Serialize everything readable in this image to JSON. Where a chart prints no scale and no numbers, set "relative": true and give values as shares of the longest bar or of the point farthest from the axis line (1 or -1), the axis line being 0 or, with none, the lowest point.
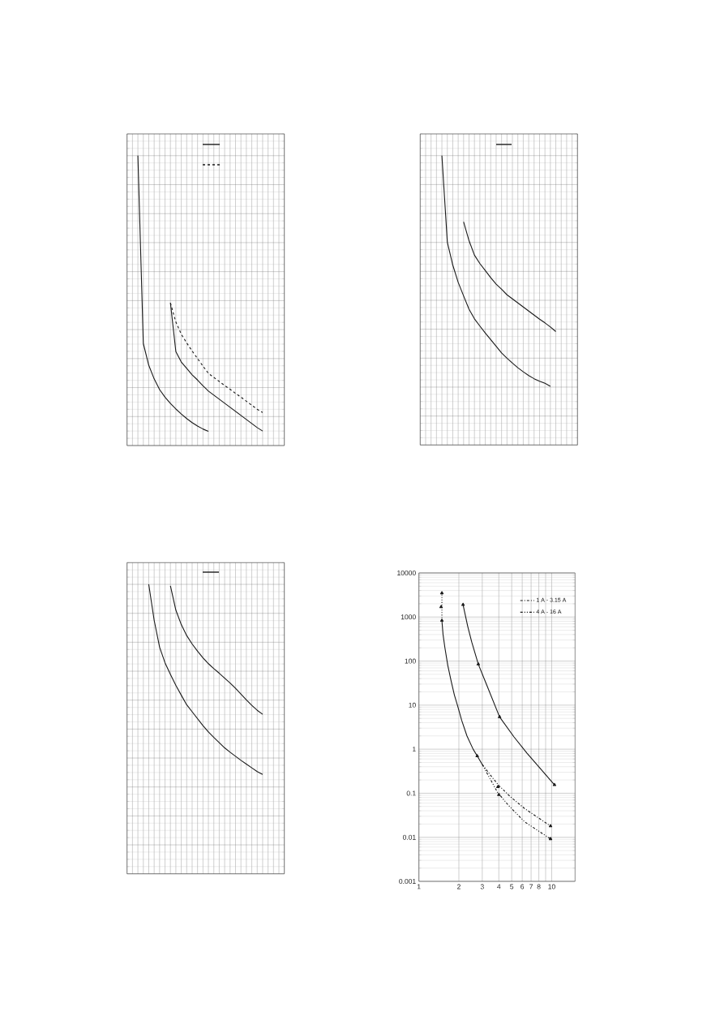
{
  "chart_data": [
    {
      "type": "line",
      "relative": true,
      "grid": true,
      "categories": [
        null,
        null,
        null,
        null,
        null,
        null,
        null,
        null,
        null,
        null,
        null,
        null,
        null,
        null,
        null,
        null,
        null,
        null,
        null,
        null,
        null,
        null,
        null,
        null,
        null,
        null,
        null,
        null,
        null,
        null
      ],
      "series": [
        {
          "color": "#1a1a1a",
          "line_style": "solid",
          "values": [
            null,
            null,
            1,
            0.352,
            0.277,
            0.23,
            0.193,
            0.167,
            0.145,
            0.126,
            0.109,
            0.093,
            0.079,
            0.067,
            0.057,
            0.049,
            null,
            null,
            null,
            null,
            null,
            null,
            null,
            null,
            null,
            null,
            null,
            null,
            null,
            null
          ]
        },
        {
          "color": "#1a1a1a",
          "line_style": "solid",
          "values": [
            null,
            null,
            null,
            null,
            null,
            null,
            null,
            null,
            0.492,
            0.324,
            0.288,
            0.266,
            0.244,
            0.226,
            0.206,
            0.188,
            0.174,
            0.16,
            0.146,
            0.132,
            0.118,
            0.104,
            0.09,
            0.076,
            0.062,
            0.05,
            null,
            null,
            null,
            null
          ]
        },
        {
          "color": "#1a1a1a",
          "line_style": "dashed",
          "values": [
            null,
            null,
            null,
            null,
            null,
            null,
            null,
            null,
            0.492,
            0.426,
            0.384,
            0.354,
            0.326,
            0.3,
            0.274,
            0.249,
            0.235,
            0.221,
            0.207,
            0.194,
            0.18,
            0.167,
            0.153,
            0.139,
            0.125,
            0.114,
            null,
            null,
            null,
            null
          ]
        }
      ]
    },
    {
      "type": "line",
      "relative": true,
      "grid": true,
      "categories": [
        null,
        null,
        null,
        null,
        null,
        null,
        null,
        null,
        null,
        null,
        null,
        null,
        null,
        null,
        null,
        null,
        null,
        null,
        null,
        null,
        null,
        null,
        null,
        null,
        null,
        null,
        null,
        null,
        null,
        null
      ],
      "series": [
        {
          "color": "#1a1a1a",
          "line_style": "solid",
          "values": [
            null,
            null,
            null,
            null,
            1,
            0.701,
            0.622,
            0.562,
            0.515,
            0.469,
            0.436,
            0.411,
            0.387,
            0.364,
            0.341,
            0.318,
            0.3,
            0.283,
            0.267,
            0.253,
            0.24,
            0.229,
            0.22,
            0.213,
            0.203,
            null,
            null,
            null,
            null,
            null
          ]
        },
        {
          "color": "#1a1a1a",
          "line_style": "solid",
          "values": [
            null,
            null,
            null,
            null,
            null,
            null,
            null,
            null,
            0.771,
            0.706,
            0.656,
            0.627,
            0.603,
            0.578,
            0.556,
            0.538,
            0.519,
            0.505,
            0.491,
            0.477,
            0.463,
            0.449,
            0.435,
            0.422,
            0.408,
            0.392,
            null,
            null,
            null,
            null
          ]
        }
      ]
    },
    {
      "type": "line",
      "relative": true,
      "grid": true,
      "categories": [
        null,
        null,
        null,
        null,
        null,
        null,
        null,
        null,
        null,
        null,
        null,
        null,
        null,
        null,
        null,
        null,
        null,
        null,
        null,
        null,
        null,
        null,
        null,
        null,
        null,
        null,
        null,
        null,
        null,
        null
      ],
      "series": [
        {
          "color": "#1a1a1a",
          "line_style": "solid",
          "values": [
            null,
            null,
            null,
            null,
            1,
            0.876,
            0.783,
            0.729,
            0.689,
            0.651,
            0.617,
            0.584,
            0.56,
            0.536,
            0.512,
            0.49,
            0.471,
            0.453,
            0.435,
            0.42,
            0.406,
            0.392,
            0.379,
            0.366,
            0.353,
            0.343,
            null,
            null,
            null,
            null
          ]
        },
        {
          "color": "#1a1a1a",
          "line_style": "solid",
          "values": [
            null,
            null,
            null,
            null,
            null,
            null,
            null,
            null,
            0.995,
            0.911,
            0.861,
            0.823,
            0.794,
            0.769,
            0.746,
            0.726,
            0.709,
            0.693,
            0.676,
            0.659,
            0.641,
            0.621,
            0.601,
            0.582,
            0.565,
            0.551,
            null,
            null,
            null,
            null
          ]
        }
      ]
    },
    {
      "type": "line",
      "log": "xy",
      "grid": true,
      "legend": "top right",
      "xlim": [
        1,
        15
      ],
      "ylim": [
        0.001,
        10000
      ],
      "xticks": [
        1,
        2,
        3,
        4,
        5,
        6,
        7,
        8,
        {
          "value": 9,
          "label": null
        },
        10
      ],
      "yticks": [
        0.001,
        0.01,
        0.1,
        1,
        10,
        100,
        1000,
        10000
      ],
      "series": [
        {
          "color": "#1a1a1a",
          "line_style": "solid",
          "x": [
            1.49,
            1.52,
            1.57,
            1.65,
            1.75,
            1.85,
            1.95,
            2.1,
            2.3,
            2.56,
            2.75,
            3.0
          ],
          "values": [
            830,
            400,
            200,
            80,
            35,
            17,
            10,
            4.5,
            2,
            1,
            0.7,
            0.45
          ]
        },
        {
          "color": "#1a1a1a",
          "line_style": "dotted",
          "x": [
            1.49,
            1.49
          ],
          "values": [
            830,
            3500
          ]
        },
        {
          "color": "#1a1a1a",
          "line_style": "solid",
          "x": [
            2.15,
            2.33,
            2.5,
            2.8,
            3.25,
            4.05,
            5.2,
            6.5,
            8.3,
            10.5
          ],
          "values": [
            1900,
            620,
            270,
            85,
            28,
            5.4,
            1.9,
            0.82,
            0.35,
            0.155
          ]
        },
        {
          "name": "1 A - 3.15 A",
          "color": "#1a1a1a",
          "line_style": "dashdotted",
          "x": [
            3.0,
            3.56,
            4.0,
            4.83,
            6.25,
            9.8
          ],
          "values": [
            0.45,
            0.23,
            0.15,
            0.086,
            0.045,
            0.018
          ]
        },
        {
          "name": "4 A - 16 A",
          "color": "#1a1a1a",
          "line_style": "dashdotdotted",
          "x": [
            3.0,
            3.9,
            4.7,
            6.25,
            9.8
          ],
          "values": [
            0.45,
            0.106,
            0.054,
            0.0225,
            0.0092
          ]
        },
        {
          "type": "scatter",
          "marker": "triangle",
          "color": "#1a1a1a",
          "x": [
            1.49,
            1.47,
            1.49,
            2.75,
            2.15,
            2.8,
            4.05,
            10.5,
            3.94,
            4.0,
            9.8,
            9.8
          ],
          "values": [
            3500,
            1700,
            830,
            0.7,
            1900,
            85,
            5.4,
            0.155,
            0.14,
            0.092,
            0.018,
            0.0092
          ]
        }
      ]
    }
  ]
}
